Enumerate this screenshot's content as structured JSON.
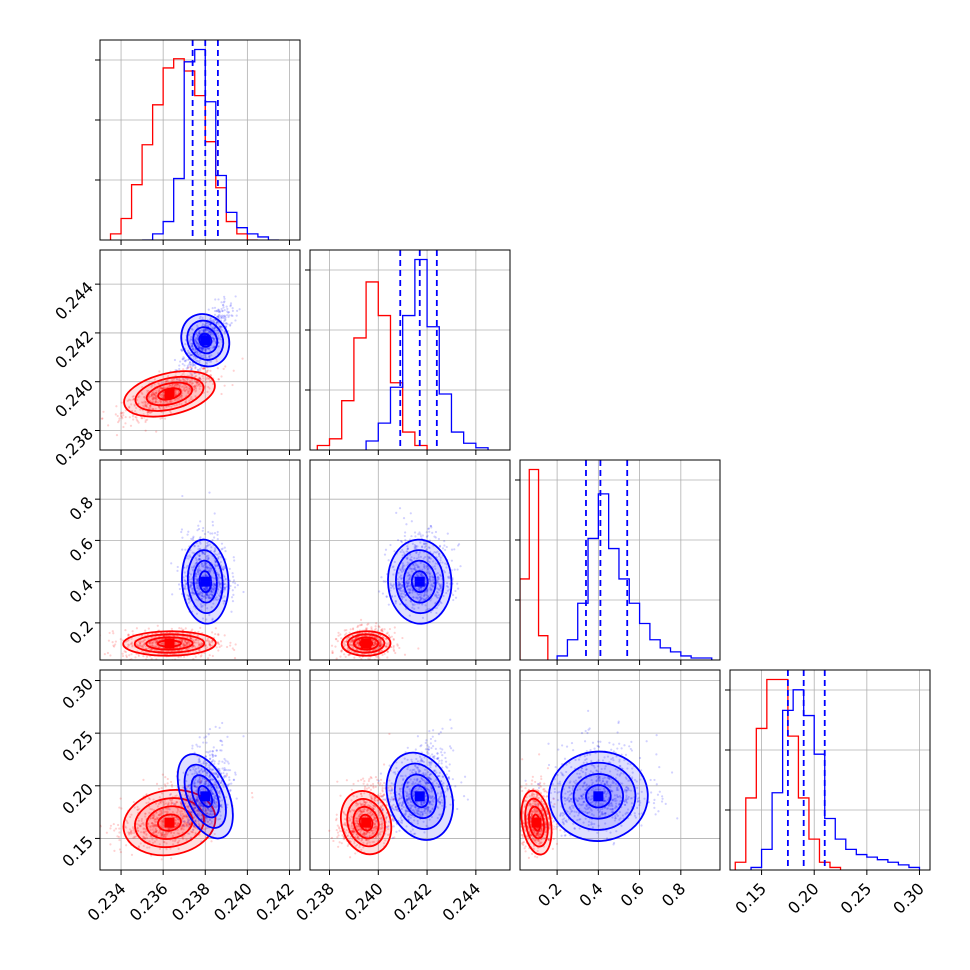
{
  "chart_data": {
    "type": "corner",
    "grid": true,
    "colors": {
      "red": "#ff0000",
      "blue": "#0000ff",
      "grid": "#b0b0b0"
    },
    "params": [
      {
        "range": [
          0.233,
          0.2425
        ],
        "ticks": [
          "0.234",
          "0.236",
          "0.238",
          "0.240",
          "0.242"
        ],
        "tickvals": [
          0.234,
          0.236,
          0.238,
          0.24,
          0.242
        ]
      },
      {
        "range": [
          0.2372,
          0.2454
        ],
        "ticks": [
          "0.238",
          "0.240",
          "0.242",
          "0.244"
        ],
        "tickvals": [
          0.238,
          0.24,
          0.242,
          0.244
        ]
      },
      {
        "range": [
          0.02,
          0.99
        ],
        "ticks": [
          "0.2",
          "0.4",
          "0.6",
          "0.8"
        ],
        "tickvals": [
          0.2,
          0.4,
          0.6,
          0.8
        ]
      },
      {
        "range": [
          0.12,
          0.31
        ],
        "ticks": [
          "0.15",
          "0.20",
          "0.25",
          "0.30"
        ],
        "tickvals": [
          0.15,
          0.2,
          0.25,
          0.3
        ]
      }
    ],
    "red_center": [
      0.2363,
      0.2395,
      0.1,
      0.165
    ],
    "red_sd": [
      0.0011,
      0.0005,
      0.035,
      0.018
    ],
    "blue_center": [
      0.238,
      0.2417,
      0.4,
      0.19
    ],
    "blue_sd": [
      0.00055,
      0.00065,
      0.12,
      0.025
    ],
    "blue_quantiles": [
      [
        0.2374,
        0.238,
        0.2386
      ],
      [
        0.2409,
        0.2417,
        0.2424
      ],
      [
        0.34,
        0.41,
        0.54
      ],
      [
        0.175,
        0.19,
        0.21
      ]
    ],
    "hist_red": [
      {
        "edges": [
          0.2335,
          0.234,
          0.2345,
          0.235,
          0.2355,
          0.236,
          0.2365,
          0.237,
          0.2375,
          0.238,
          0.2385,
          0.239,
          0.2395,
          0.24,
          0.2405
        ],
        "counts": [
          2,
          7,
          18,
          31,
          44,
          56,
          59,
          55,
          47,
          32,
          17,
          6,
          2,
          0
        ]
      },
      {
        "edges": [
          0.2375,
          0.238,
          0.2385,
          0.239,
          0.2395,
          0.24,
          0.2405,
          0.241,
          0.2415,
          0.242
        ],
        "counts": [
          2,
          5,
          22,
          50,
          75,
          60,
          30,
          8,
          2
        ]
      },
      {
        "edges": [
          0.02,
          0.065,
          0.11,
          0.155
        ],
        "counts": [
          40,
          94,
          12
        ]
      },
      {
        "edges": [
          0.125,
          0.135,
          0.145,
          0.155,
          0.165,
          0.175,
          0.185,
          0.195,
          0.205,
          0.215,
          0.225
        ],
        "counts": [
          3,
          28,
          55,
          74,
          74,
          52,
          28,
          12,
          3,
          1
        ]
      }
    ],
    "hist_blue": [
      {
        "edges": [
          0.235,
          0.2355,
          0.236,
          0.2365,
          0.237,
          0.2375,
          0.238,
          0.2385,
          0.239,
          0.2395,
          0.24,
          0.2405,
          0.241,
          0.2415
        ],
        "counts": [
          0,
          2,
          6,
          20,
          58,
          62,
          45,
          21,
          9,
          4,
          2,
          1,
          0
        ]
      },
      {
        "edges": [
          0.2395,
          0.24,
          0.2405,
          0.241,
          0.2415,
          0.242,
          0.2425,
          0.243,
          0.2435,
          0.244,
          0.2445
        ],
        "counts": [
          4,
          12,
          28,
          60,
          85,
          55,
          25,
          8,
          3,
          1
        ]
      },
      {
        "edges": [
          0.2,
          0.25,
          0.3,
          0.35,
          0.4,
          0.45,
          0.5,
          0.55,
          0.6,
          0.65,
          0.7,
          0.75,
          0.8,
          0.85,
          0.9,
          0.95
        ],
        "counts": [
          2,
          10,
          28,
          60,
          82,
          55,
          40,
          28,
          18,
          10,
          6,
          4,
          2,
          1,
          1
        ]
      },
      {
        "edges": [
          0.14,
          0.15,
          0.16,
          0.17,
          0.18,
          0.19,
          0.2,
          0.21,
          0.22,
          0.23,
          0.24,
          0.25,
          0.26,
          0.27,
          0.28,
          0.29,
          0.3
        ],
        "counts": [
          1,
          8,
          30,
          62,
          70,
          60,
          45,
          20,
          12,
          8,
          6,
          5,
          4,
          3,
          2,
          1
        ]
      }
    ]
  }
}
